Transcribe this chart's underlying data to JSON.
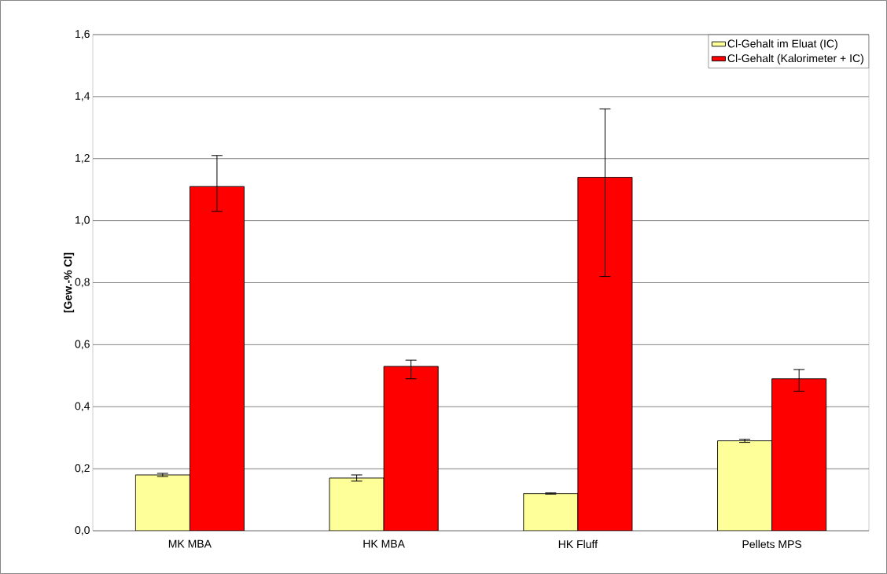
{
  "chart_data": {
    "type": "bar",
    "ylabel": "[Gew.-% Cl]",
    "categories": [
      "MK MBA",
      "HK MBA",
      "HK Fluff",
      "Pellets MPS"
    ],
    "series": [
      {
        "name": "Cl-Gehalt im Eluat (IC)",
        "color": "#ffff99",
        "values": [
          0.18,
          0.17,
          0.12,
          0.29
        ],
        "errors": [
          0.005,
          0.01,
          0.002,
          0.005
        ]
      },
      {
        "name": "Cl-Gehalt (Kalorimeter + IC)",
        "color": "#ff0000",
        "values": [
          1.11,
          0.53,
          1.14,
          0.49
        ],
        "errors": [
          [
            1.03,
            1.21
          ],
          [
            0.49,
            0.55
          ],
          [
            0.82,
            1.36
          ],
          [
            0.45,
            0.52
          ]
        ]
      }
    ],
    "ylim": [
      0,
      1.6
    ],
    "yticks": [
      {
        "value": 0,
        "label": "0,0"
      },
      {
        "value": 0.2,
        "label": "0,2"
      },
      {
        "value": 0.4,
        "label": "0,4"
      },
      {
        "value": 0.6,
        "label": "0,6"
      },
      {
        "value": 0.8,
        "label": "0,8"
      },
      {
        "value": 1.0,
        "label": "1,0"
      },
      {
        "value": 1.2,
        "label": "1,2"
      },
      {
        "value": 1.4,
        "label": "1,4"
      },
      {
        "value": 1.6,
        "label": "1,6"
      }
    ],
    "grid": "y",
    "legend": "top right"
  }
}
